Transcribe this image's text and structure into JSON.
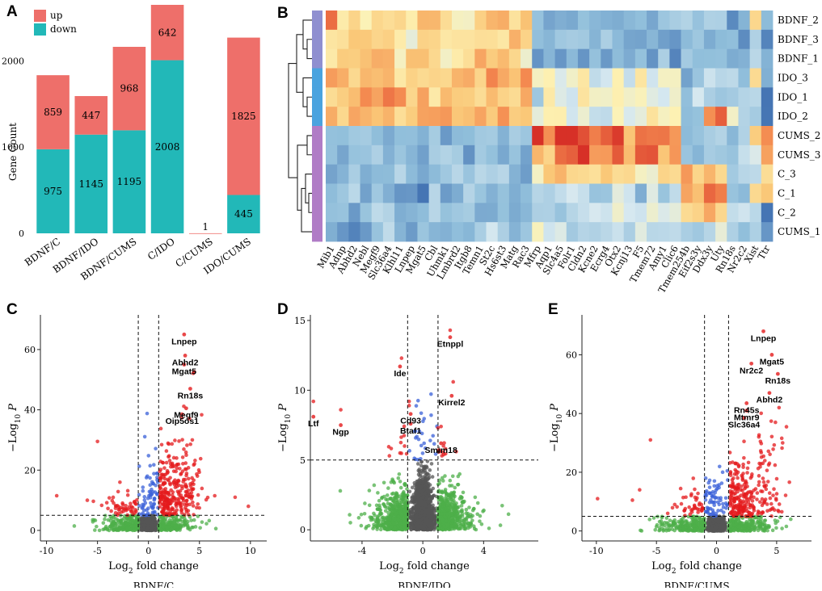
{
  "chart_data": [
    {
      "panel": "A",
      "type": "bar",
      "stacked": true,
      "categories": [
        "BDNF/C",
        "BDNF/IDO",
        "BDNF/CUMS",
        "C/IDO",
        "C/CUMS",
        "IDO/CUMS"
      ],
      "series": [
        {
          "name": "down",
          "values": [
            975,
            1145,
            1195,
            2008,
            0,
            445
          ],
          "color": "#22B8B8"
        },
        {
          "name": "up",
          "values": [
            859,
            447,
            968,
            642,
            1,
            1825
          ],
          "color": "#EE6F6A"
        }
      ],
      "ylabel": "Gene Count",
      "ylim": [
        0,
        2650
      ],
      "yticks": [
        "0",
        "1000",
        "2000"
      ],
      "legend": {
        "position": "top-left",
        "entries": [
          "up",
          "down"
        ]
      }
    },
    {
      "panel": "B",
      "type": "heatmap",
      "rows": [
        "BDNF_2",
        "BDNF_3",
        "BDNF_1",
        "IDO_3",
        "IDO_1",
        "IDO_2",
        "CUMS_2",
        "CUMS_3",
        "C_3",
        "C_1",
        "C_2",
        "CUMS_1"
      ],
      "row_group_colors": [
        "#8F8FD0",
        "#8F8FD0",
        "#8F8FD0",
        "#4AA3DF",
        "#4AA3DF",
        "#4AA3DF",
        "#B07CC6",
        "#B07CC6",
        "#B07CC6",
        "#B07CC6",
        "#B07CC6",
        "#B07CC6"
      ],
      "columns": [
        "Mib1",
        "Adnp",
        "Abhd2",
        "Nebl",
        "Megf9",
        "Slc36a4",
        "Klhl11",
        "Lnpep",
        "Mgat5",
        "Cbl",
        "Uhmk1",
        "Lmbrd2",
        "Itgb8",
        "Temn1",
        "St2c",
        "Hs6st3",
        "Matg",
        "Rac3",
        "Mfrp",
        "Aqp1",
        "Slc4a5",
        "Folr1",
        "Cldn2",
        "Kcne2",
        "Ecrg4",
        "Otx2",
        "Kcnj13",
        "F5",
        "Tmem72",
        "Amy1",
        "Clic6",
        "Tmem254b",
        "Eif2s3y",
        "Ddx3y",
        "Uty",
        "Rn18s",
        "Nr2c2",
        "Xist",
        "Ttr"
      ],
      "colormap": "blue-yellow-red"
    },
    {
      "panel": "C",
      "type": "scatter",
      "comparison": "BDNF/C",
      "xlabel_main": "Log",
      "xlabel_sub": "2",
      "xlabel_rest": " fold change",
      "ylabel_main": "−Log",
      "ylabel_sub": "10",
      "ylabel_var": " P",
      "xlim": [
        -10.6,
        11.6
      ],
      "ylim": [
        -3.5,
        71.5
      ],
      "xticks": [
        -10,
        -5,
        0,
        5,
        10
      ],
      "yticks": [
        0,
        20,
        40,
        60
      ],
      "fc_threshold": 1,
      "p_threshold": 5,
      "labels": [
        {
          "text": "Lnpep",
          "x": 3.5,
          "y": 65
        },
        {
          "text": "Abhd2",
          "x": 3.6,
          "y": 58
        },
        {
          "text": "Mgat5",
          "x": 3.5,
          "y": 55
        },
        {
          "text": "Rn18s",
          "x": 4.1,
          "y": 47
        },
        {
          "text": "Megf9",
          "x": 3.7,
          "y": 40.5
        },
        {
          "text": "Oip5os1",
          "x": 3.3,
          "y": 38.5
        }
      ]
    },
    {
      "panel": "D",
      "type": "scatter",
      "comparison": "BDNF/IDO",
      "xlabel_main": "Log",
      "xlabel_sub": "2",
      "xlabel_rest": " fold change",
      "ylabel_main": "−Log",
      "ylabel_sub": "10",
      "ylabel_var": " P",
      "xlim": [
        -7.4,
        7.6
      ],
      "ylim": [
        -0.8,
        15.4
      ],
      "xticks": [
        -4,
        0,
        4
      ],
      "yticks": [
        0,
        5,
        10,
        15
      ],
      "fc_threshold": 1,
      "p_threshold": 5,
      "labels": [
        {
          "text": "Etnppl",
          "x": 1.8,
          "y": 13.8
        },
        {
          "text": "Ide",
          "x": -1.5,
          "y": 11.7
        },
        {
          "text": "Kirrel2",
          "x": 1.9,
          "y": 9.6
        },
        {
          "text": "Cd93",
          "x": -0.8,
          "y": 8.3
        },
        {
          "text": "Ltf",
          "x": -7.2,
          "y": 8.1
        },
        {
          "text": "Ngp",
          "x": -5.4,
          "y": 7.5
        },
        {
          "text": "Btaf1",
          "x": -0.8,
          "y": 7.6
        },
        {
          "text": "Smim18",
          "x": 1.2,
          "y": 6.2
        }
      ]
    },
    {
      "panel": "E",
      "type": "scatter",
      "comparison": "BDNF/CUMS",
      "xlabel_main": "Log",
      "xlabel_sub": "2",
      "xlabel_rest": " fold change",
      "ylabel_main": "−Log",
      "ylabel_sub": "10",
      "ylabel_var": " P",
      "xlim": [
        -11.2,
        7.9
      ],
      "ylim": [
        -3.4,
        73.6
      ],
      "xticks": [
        -10,
        -5,
        0,
        5
      ],
      "yticks": [
        0,
        20,
        40,
        60
      ],
      "fc_threshold": 1,
      "p_threshold": 5,
      "labels": [
        {
          "text": "Lnpep",
          "x": 3.9,
          "y": 68
        },
        {
          "text": "Mgat5",
          "x": 4.6,
          "y": 60
        },
        {
          "text": "Nr2c2",
          "x": 2.9,
          "y": 57
        },
        {
          "text": "Rn18s",
          "x": 5.1,
          "y": 53.5
        },
        {
          "text": "Abhd2",
          "x": 4.4,
          "y": 47
        },
        {
          "text": "Rn45s",
          "x": 2.5,
          "y": 43.5
        },
        {
          "text": "Mtmr9",
          "x": 2.5,
          "y": 41
        },
        {
          "text": "Slc36a4",
          "x": 2.3,
          "y": 38.5
        }
      ]
    }
  ],
  "panels": {
    "A": {
      "letter": "A"
    },
    "B": {
      "letter": "B"
    },
    "C": {
      "letter": "C"
    },
    "D": {
      "letter": "D"
    },
    "E": {
      "letter": "E"
    }
  },
  "colors": {
    "up": "#EE6F6A",
    "down": "#22B8B8",
    "sig_red": "#E41A1C",
    "sig_blue": "#3A60D8",
    "ns_green": "#4DAF4A",
    "ns_grey": "#555555"
  }
}
